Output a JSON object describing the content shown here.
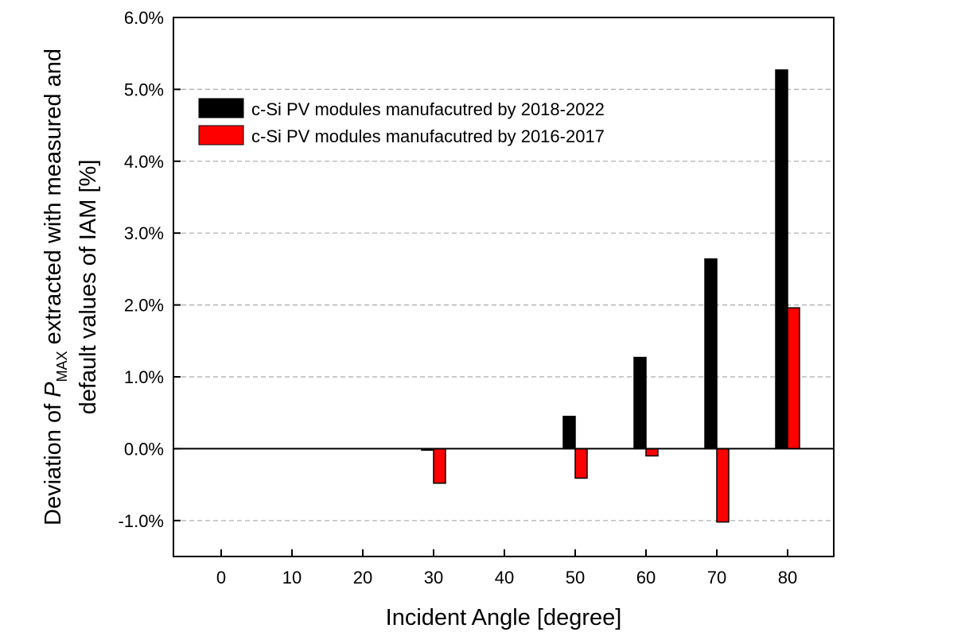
{
  "chart_data": {
    "type": "bar",
    "xlabel": "Incident Angle [degree]",
    "ylabel_line1_prefix": "Deviation of ",
    "ylabel_symbol": "P",
    "ylabel_subscript": "MAX",
    "ylabel_line1_suffix": " extracted with measured and",
    "ylabel_line2": "default values of IAM [%]",
    "categories": [
      0,
      10,
      20,
      30,
      40,
      50,
      60,
      70,
      80
    ],
    "x_tick_labels": [
      "0",
      "10",
      "20",
      "30",
      "40",
      "50",
      "60",
      "70",
      "80"
    ],
    "ylim": [
      -1.5,
      6.0
    ],
    "y_ticks": [
      -1.0,
      0.0,
      1.0,
      2.0,
      3.0,
      4.0,
      5.0,
      6.0
    ],
    "y_tick_labels": [
      "-1.0%",
      "0.0%",
      "1.0%",
      "2.0%",
      "3.0%",
      "4.0%",
      "5.0%",
      "6.0%"
    ],
    "grid": "horizontal dashed",
    "legend_position": "top-left",
    "series": [
      {
        "name": "c-Si PV modules manufacutred by 2018-2022",
        "color": "#000000",
        "values": [
          0,
          0,
          0,
          -0.02,
          0,
          0.45,
          1.27,
          2.64,
          5.27
        ]
      },
      {
        "name": "c-Si PV modules manufacutred by 2016-2017",
        "color": "#ff0000",
        "values": [
          0,
          0,
          0,
          -0.48,
          0,
          -0.41,
          -0.1,
          -1.02,
          1.96
        ]
      }
    ]
  }
}
